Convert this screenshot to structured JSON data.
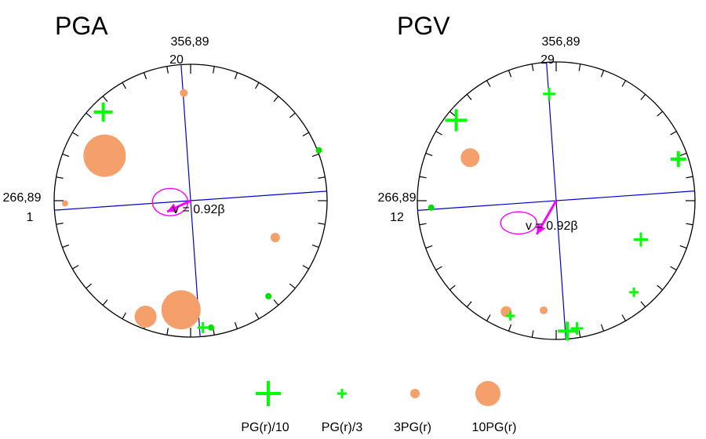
{
  "colors": {
    "plus": "#00ff00",
    "dot_green": "#00e000",
    "salmon": "#f5a06a",
    "azimuth": "#0000cc",
    "vector": "#ff00ff",
    "frame": "#000000"
  },
  "panels": [
    {
      "id": "pga",
      "title": "PGA",
      "top_label": "356,89",
      "top_number": "20",
      "left_label": "266,89",
      "left_number": "1",
      "velocity_label": "v = 0.92β",
      "velocity_vector": {
        "angle_deg": 245,
        "fraction": 0.19
      },
      "uncertainty_ellipse": {
        "cx_frac": -0.15,
        "cy_frac": -0.01,
        "rx_frac": 0.13,
        "ry_frac": 0.1
      },
      "markers": [
        {
          "type": "plus",
          "size": 12,
          "x": -0.64,
          "y": 0.65
        },
        {
          "type": "dot",
          "size": 4,
          "x": 0.94,
          "y": 0.37
        },
        {
          "type": "dot",
          "size": 4,
          "x": 0.57,
          "y": -0.7
        },
        {
          "type": "dot",
          "size": 4,
          "x": 0.15,
          "y": -0.93
        },
        {
          "type": "plus",
          "size": 7,
          "x": 0.09,
          "y": -0.93
        },
        {
          "type": "plus",
          "size": 8,
          "x": -0.32,
          "y": -0.86
        },
        {
          "type": "circle",
          "size": 14,
          "x": -0.33,
          "y": -0.85
        },
        {
          "type": "circle",
          "size": 25,
          "x": -0.07,
          "y": -0.8
        },
        {
          "type": "circle",
          "size": 27,
          "x": -0.63,
          "y": 0.33
        },
        {
          "type": "circle",
          "size": 5,
          "x": -0.05,
          "y": 0.79
        },
        {
          "type": "circle",
          "size": 6,
          "x": 0.62,
          "y": -0.27
        },
        {
          "type": "circle",
          "size": 4,
          "x": -0.92,
          "y": -0.02
        }
      ]
    },
    {
      "id": "pgv",
      "title": "PGV",
      "top_label": "356,89",
      "top_number": "29",
      "left_label": "266,89",
      "left_number": "12",
      "velocity_label": "v = 0.92β",
      "velocity_vector": {
        "angle_deg": 210,
        "fraction": 0.28
      },
      "uncertainty_ellipse": {
        "cx_frac": -0.27,
        "cy_frac": -0.16,
        "rx_frac": 0.13,
        "ry_frac": 0.08
      },
      "markers": [
        {
          "type": "plus",
          "size": 8,
          "x": -0.05,
          "y": 0.77
        },
        {
          "type": "plus",
          "size": 14,
          "x": -0.72,
          "y": 0.58
        },
        {
          "type": "plus",
          "size": 10,
          "x": 0.88,
          "y": 0.3
        },
        {
          "type": "plus",
          "size": 9,
          "x": 0.61,
          "y": -0.28
        },
        {
          "type": "plus",
          "size": 6,
          "x": 0.56,
          "y": -0.66
        },
        {
          "type": "dot",
          "size": 4,
          "x": -0.9,
          "y": -0.05
        },
        {
          "type": "circle",
          "size": 12,
          "x": -0.62,
          "y": 0.31
        },
        {
          "type": "circle",
          "size": 7,
          "x": -0.36,
          "y": -0.8
        },
        {
          "type": "circle",
          "size": 5,
          "x": -0.09,
          "y": -0.79
        },
        {
          "type": "plus",
          "size": 6,
          "x": -0.33,
          "y": -0.83
        },
        {
          "type": "plus",
          "size": 12,
          "x": 0.08,
          "y": -0.94
        },
        {
          "type": "plus",
          "size": 8,
          "x": 0.15,
          "y": -0.92
        }
      ]
    }
  ],
  "legend": [
    {
      "type": "plus",
      "size": 16,
      "label": "PG(r)/10"
    },
    {
      "type": "plus",
      "size": 6,
      "label": "PG(r)/3"
    },
    {
      "type": "circle",
      "size": 6,
      "label": "3PG(r)"
    },
    {
      "type": "circle",
      "size": 16,
      "label": "10PG(r)"
    }
  ]
}
